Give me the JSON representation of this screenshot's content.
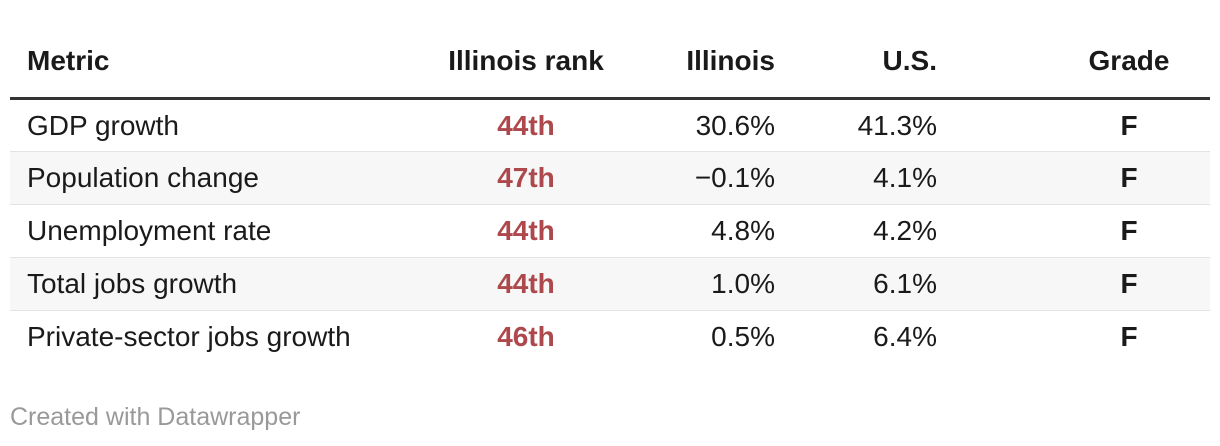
{
  "chart_data": {
    "type": "table",
    "columns": [
      "Metric",
      "Illinois rank",
      "Illinois",
      "U.S.",
      "Grade"
    ],
    "column_alignments": [
      "left",
      "center",
      "right",
      "right",
      "center"
    ],
    "rows": [
      [
        "GDP growth",
        "44th",
        "30.6%",
        "41.3%",
        "F"
      ],
      [
        "Population change",
        "47th",
        "−0.1%",
        "4.1%",
        "F"
      ],
      [
        "Unemployment rate",
        "44th",
        "4.8%",
        "4.2%",
        "F"
      ],
      [
        "Total jobs growth",
        "44th",
        "1.0%",
        "6.1%",
        "F"
      ],
      [
        "Private-sector jobs growth",
        "46th",
        "0.5%",
        "6.4%",
        "F"
      ]
    ],
    "series": [
      {
        "name": "Illinois rank",
        "values": [
          44,
          47,
          44,
          44,
          46
        ]
      },
      {
        "name": "Illinois",
        "unit": "%",
        "values": [
          30.6,
          -0.1,
          4.8,
          1.0,
          0.5
        ]
      },
      {
        "name": "U.S.",
        "unit": "%",
        "values": [
          41.3,
          4.1,
          4.2,
          6.1,
          6.4
        ]
      },
      {
        "name": "Grade",
        "values": [
          "F",
          "F",
          "F",
          "F",
          "F"
        ]
      }
    ],
    "layout_hints": {
      "zebra_striping": true,
      "header_rule": true,
      "grid": "horizontal-only"
    }
  },
  "footer": {
    "attribution": "Created with Datawrapper"
  },
  "colors": {
    "rank_red": "#ad494c",
    "text": "#1a1a1a",
    "header_rule": "#333333",
    "stripe": "#f7f7f7",
    "divider": "#e3e3e3",
    "footer_gray": "#999999",
    "background": "#ffffff"
  }
}
